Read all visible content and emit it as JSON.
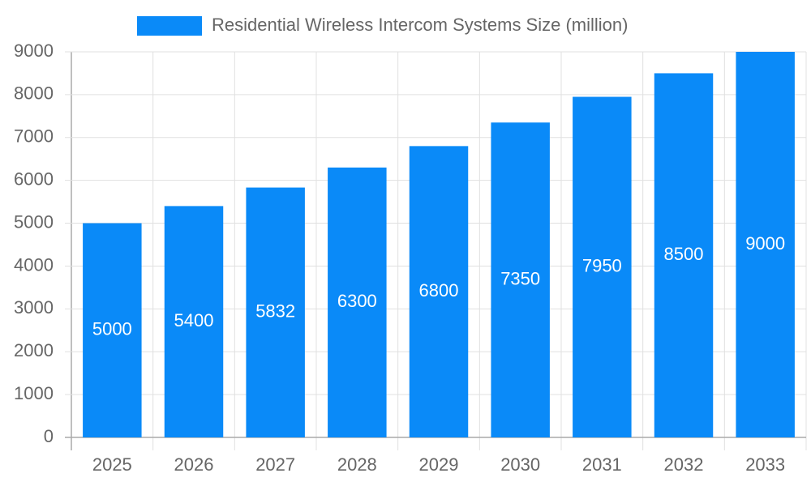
{
  "chart_data": {
    "type": "bar",
    "categories": [
      "2025",
      "2026",
      "2027",
      "2028",
      "2029",
      "2030",
      "2031",
      "2032",
      "2033"
    ],
    "series": [
      {
        "name": "Residential Wireless Intercom Systems Size (million)",
        "color": "#0a8af8",
        "values": [
          5000,
          5400,
          5832,
          6300,
          6800,
          7350,
          7950,
          8500,
          9000
        ]
      }
    ],
    "ylim": [
      0,
      9000
    ],
    "yticks": [
      0,
      1000,
      2000,
      3000,
      4000,
      5000,
      6000,
      7000,
      8000,
      9000
    ],
    "grid": true,
    "legend": "top",
    "data_labels": true
  }
}
